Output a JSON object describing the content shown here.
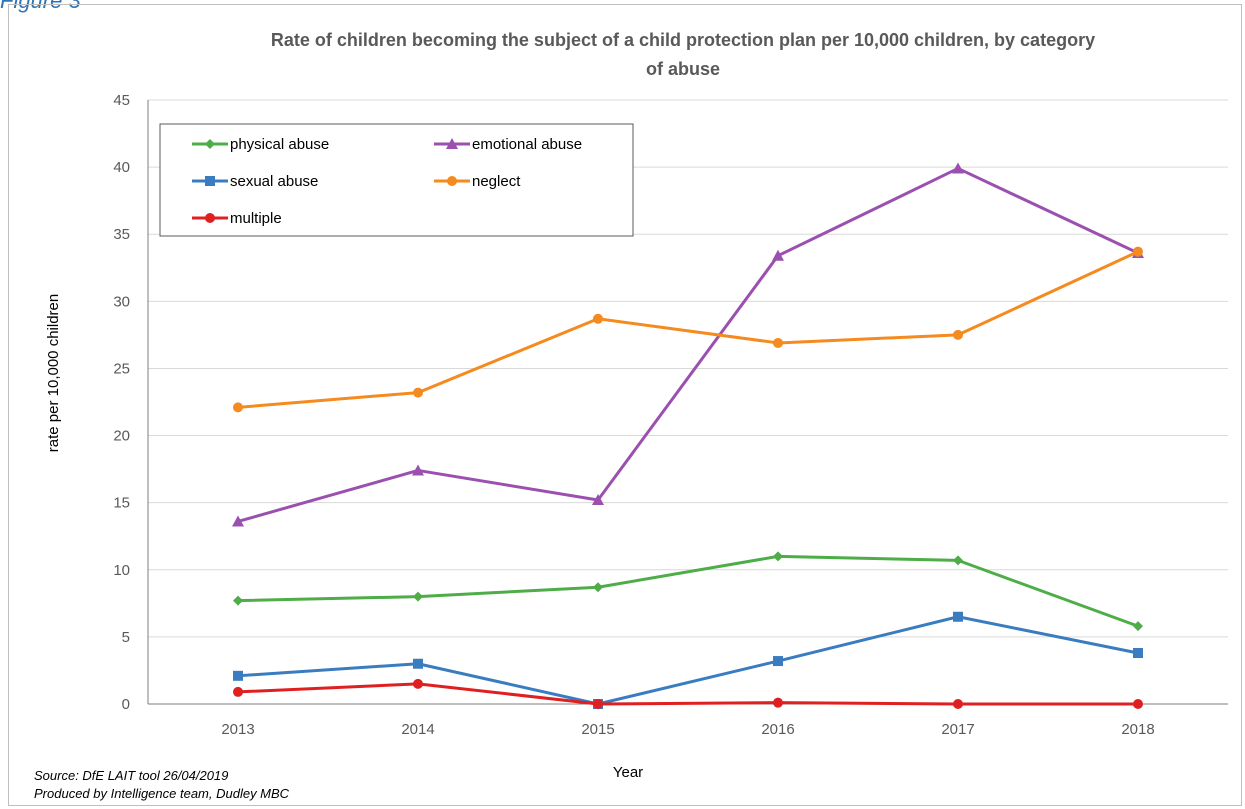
{
  "figure_label": "Figure 3",
  "footer": {
    "source": "Source: DfE LAIT tool 26/04/2019",
    "produced_by": "Produced by Intelligence team, Dudley MBC"
  },
  "chart_data": {
    "type": "line",
    "title_line1": "Rate of children becoming the subject of a child protection plan per 10,000 children, by category",
    "title_line2": "of abuse",
    "xlabel": "Year",
    "ylabel": "rate per 10,000 children",
    "categories": [
      "2013",
      "2014",
      "2015",
      "2016",
      "2017",
      "2018"
    ],
    "ylim": [
      0,
      45
    ],
    "yticks": [
      0,
      5,
      10,
      15,
      20,
      25,
      30,
      35,
      40,
      45
    ],
    "grid": true,
    "legend_position": "top-left",
    "series": [
      {
        "name": "physical abuse",
        "color": "#4ead48",
        "marker": "diamond",
        "values": [
          7.7,
          8.0,
          8.7,
          11.0,
          10.7,
          5.8
        ]
      },
      {
        "name": "emotional abuse",
        "color": "#9b50b0",
        "marker": "triangle",
        "values": [
          13.6,
          17.4,
          15.2,
          33.4,
          39.9,
          33.6
        ]
      },
      {
        "name": "sexual abuse",
        "color": "#3a7cc0",
        "marker": "square",
        "values": [
          2.1,
          3.0,
          0.0,
          3.2,
          6.5,
          3.8
        ]
      },
      {
        "name": "neglect",
        "color": "#f58a1f",
        "marker": "circle",
        "values": [
          22.1,
          23.2,
          28.7,
          26.9,
          27.5,
          33.7
        ]
      },
      {
        "name": "multiple",
        "color": "#e02020",
        "marker": "circle",
        "values": [
          0.9,
          1.5,
          0.0,
          0.1,
          0.0,
          0.0
        ]
      }
    ]
  }
}
